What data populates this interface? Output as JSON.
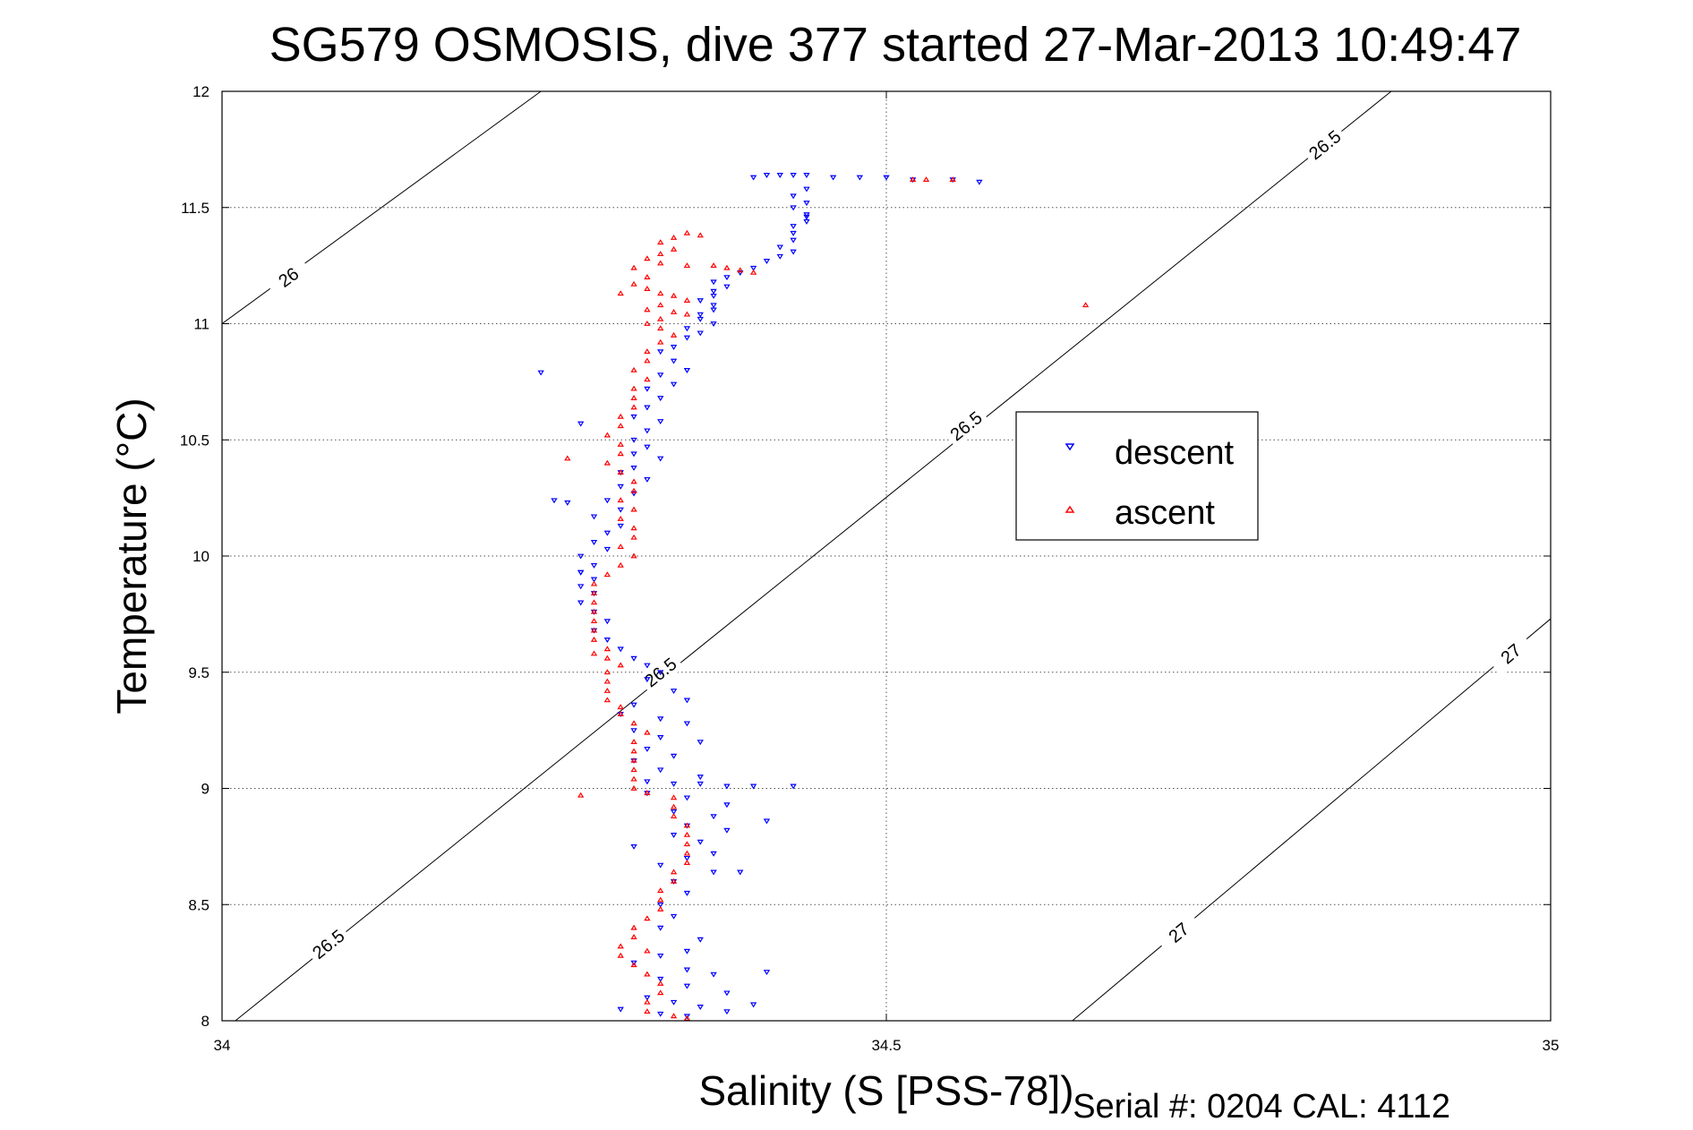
{
  "chart_data": {
    "type": "scatter",
    "title": "SG579 OSMOSIS, dive 377 started 27-Mar-2013 10:49:47",
    "xlabel": "Salinity (S [PSS-78])",
    "ylabel": "Temperature (°C)",
    "footer": "Serial #: 0204  CAL: 4112",
    "xlim": [
      34,
      35
    ],
    "ylim": [
      8,
      12
    ],
    "xticks": [
      34,
      34.5,
      35
    ],
    "xtick_labels": [
      "34",
      "34.5",
      "35"
    ],
    "yticks": [
      8,
      8.5,
      9,
      9.5,
      10,
      10.5,
      11,
      11.5,
      12
    ],
    "ytick_labels": [
      "8",
      "8.5",
      "9",
      "9.5",
      "10",
      "10.5",
      "11",
      "11.5",
      "12"
    ],
    "grid": true,
    "legend": "upper-right",
    "series": [
      {
        "name": "descent",
        "color": "#0000ff",
        "marker": "triangle-down",
        "points": [
          [
            34.4,
            11.63
          ],
          [
            34.41,
            11.64
          ],
          [
            34.42,
            11.64
          ],
          [
            34.43,
            11.64
          ],
          [
            34.44,
            11.64
          ],
          [
            34.46,
            11.63
          ],
          [
            34.48,
            11.63
          ],
          [
            34.5,
            11.63
          ],
          [
            34.52,
            11.62
          ],
          [
            34.55,
            11.62
          ],
          [
            34.57,
            11.61
          ],
          [
            34.44,
            11.58
          ],
          [
            34.43,
            11.55
          ],
          [
            34.44,
            11.52
          ],
          [
            34.43,
            11.5
          ],
          [
            34.44,
            11.47
          ],
          [
            34.44,
            11.44
          ],
          [
            34.43,
            11.42
          ],
          [
            34.43,
            11.39
          ],
          [
            34.43,
            11.36
          ],
          [
            34.42,
            11.33
          ],
          [
            34.43,
            11.31
          ],
          [
            34.42,
            11.29
          ],
          [
            34.41,
            11.27
          ],
          [
            34.4,
            11.24
          ],
          [
            34.39,
            11.22
          ],
          [
            34.38,
            11.2
          ],
          [
            34.37,
            11.18
          ],
          [
            34.38,
            11.16
          ],
          [
            34.37,
            11.14
          ],
          [
            34.37,
            11.12
          ],
          [
            34.36,
            11.1
          ],
          [
            34.37,
            11.08
          ],
          [
            34.37,
            11.06
          ],
          [
            34.36,
            11.04
          ],
          [
            34.36,
            11.02
          ],
          [
            34.37,
            11
          ],
          [
            34.35,
            10.98
          ],
          [
            34.36,
            10.96
          ],
          [
            34.35,
            10.94
          ],
          [
            34.34,
            10.9
          ],
          [
            34.33,
            10.88
          ],
          [
            34.34,
            10.84
          ],
          [
            34.35,
            10.8
          ],
          [
            34.33,
            10.78
          ],
          [
            34.34,
            10.74
          ],
          [
            34.32,
            10.72
          ],
          [
            34.33,
            10.68
          ],
          [
            34.32,
            10.64
          ],
          [
            34.31,
            10.6
          ],
          [
            34.33,
            10.58
          ],
          [
            34.32,
            10.54
          ],
          [
            34.31,
            10.5
          ],
          [
            34.32,
            10.47
          ],
          [
            34.31,
            10.44
          ],
          [
            34.33,
            10.42
          ],
          [
            34.31,
            10.38
          ],
          [
            34.3,
            10.36
          ],
          [
            34.32,
            10.33
          ],
          [
            34.3,
            10.3
          ],
          [
            34.31,
            10.27
          ],
          [
            34.29,
            10.24
          ],
          [
            34.3,
            10.2
          ],
          [
            34.28,
            10.17
          ],
          [
            34.3,
            10.13
          ],
          [
            34.29,
            10.1
          ],
          [
            34.28,
            10.06
          ],
          [
            34.29,
            10.03
          ],
          [
            34.27,
            10
          ],
          [
            34.28,
            9.96
          ],
          [
            34.27,
            9.93
          ],
          [
            34.28,
            9.9
          ],
          [
            34.27,
            9.87
          ],
          [
            34.28,
            9.84
          ],
          [
            34.27,
            9.8
          ],
          [
            34.28,
            9.76
          ],
          [
            34.29,
            9.72
          ],
          [
            34.28,
            9.68
          ],
          [
            34.29,
            9.64
          ],
          [
            34.3,
            9.6
          ],
          [
            34.31,
            9.56
          ],
          [
            34.32,
            9.53
          ],
          [
            34.33,
            9.5
          ],
          [
            34.32,
            9.47
          ],
          [
            34.34,
            9.42
          ],
          [
            34.35,
            9.38
          ],
          [
            34.31,
            9.36
          ],
          [
            34.3,
            9.32
          ],
          [
            34.33,
            9.3
          ],
          [
            34.35,
            9.28
          ],
          [
            34.31,
            9.25
          ],
          [
            34.33,
            9.22
          ],
          [
            34.36,
            9.2
          ],
          [
            34.32,
            9.17
          ],
          [
            34.34,
            9.14
          ],
          [
            34.31,
            9.12
          ],
          [
            34.33,
            9.08
          ],
          [
            34.36,
            9.05
          ],
          [
            34.32,
            9.03
          ],
          [
            34.34,
            9.02
          ],
          [
            34.36,
            9.02
          ],
          [
            34.38,
            9.01
          ],
          [
            34.4,
            9.01
          ],
          [
            34.32,
            8.98
          ],
          [
            34.35,
            8.96
          ],
          [
            34.38,
            8.93
          ],
          [
            34.34,
            8.9
          ],
          [
            34.37,
            8.88
          ],
          [
            34.41,
            8.86
          ],
          [
            34.35,
            8.84
          ],
          [
            34.38,
            8.82
          ],
          [
            34.34,
            8.8
          ],
          [
            34.36,
            8.77
          ],
          [
            34.31,
            8.75
          ],
          [
            34.37,
            8.72
          ],
          [
            34.35,
            8.7
          ],
          [
            34.33,
            8.67
          ],
          [
            34.37,
            8.64
          ],
          [
            34.39,
            8.64
          ],
          [
            34.34,
            8.6
          ],
          [
            34.35,
            8.55
          ],
          [
            34.33,
            8.5
          ],
          [
            34.34,
            8.45
          ],
          [
            34.33,
            8.4
          ],
          [
            34.36,
            8.35
          ],
          [
            34.35,
            8.3
          ],
          [
            34.33,
            8.28
          ],
          [
            34.31,
            8.25
          ],
          [
            34.35,
            8.22
          ],
          [
            34.37,
            8.2
          ],
          [
            34.33,
            8.18
          ],
          [
            34.35,
            8.15
          ],
          [
            34.38,
            8.12
          ],
          [
            34.32,
            8.1
          ],
          [
            34.34,
            8.08
          ],
          [
            34.36,
            8.06
          ],
          [
            34.3,
            8.05
          ],
          [
            34.33,
            8.03
          ],
          [
            34.35,
            8.02
          ],
          [
            34.38,
            8.04
          ],
          [
            34.4,
            8.07
          ],
          [
            34.41,
            8.21
          ],
          [
            34.24,
            10.79
          ],
          [
            34.27,
            10.57
          ],
          [
            34.25,
            10.24
          ],
          [
            34.26,
            10.23
          ],
          [
            34.27,
            9.93
          ],
          [
            34.43,
            9.01
          ],
          [
            34.44,
            11.46
          ]
        ]
      },
      {
        "name": "ascent",
        "color": "#ff0000",
        "marker": "triangle-up",
        "points": [
          [
            34.52,
            11.62
          ],
          [
            34.53,
            11.62
          ],
          [
            34.55,
            11.62
          ],
          [
            34.35,
            11.39
          ],
          [
            34.36,
            11.38
          ],
          [
            34.34,
            11.37
          ],
          [
            34.33,
            11.35
          ],
          [
            34.34,
            11.32
          ],
          [
            34.33,
            11.3
          ],
          [
            34.32,
            11.28
          ],
          [
            34.33,
            11.26
          ],
          [
            34.35,
            11.25
          ],
          [
            34.37,
            11.25
          ],
          [
            34.38,
            11.24
          ],
          [
            34.39,
            11.23
          ],
          [
            34.4,
            11.22
          ],
          [
            34.31,
            11.24
          ],
          [
            34.32,
            11.2
          ],
          [
            34.31,
            11.17
          ],
          [
            34.32,
            11.15
          ],
          [
            34.33,
            11.13
          ],
          [
            34.34,
            11.12
          ],
          [
            34.35,
            11.1
          ],
          [
            34.33,
            11.08
          ],
          [
            34.32,
            11.06
          ],
          [
            34.34,
            11.05
          ],
          [
            34.35,
            11.04
          ],
          [
            34.33,
            11.02
          ],
          [
            34.32,
            11
          ],
          [
            34.33,
            10.98
          ],
          [
            34.34,
            10.95
          ],
          [
            34.33,
            10.92
          ],
          [
            34.32,
            10.88
          ],
          [
            34.32,
            10.84
          ],
          [
            34.31,
            10.8
          ],
          [
            34.32,
            10.76
          ],
          [
            34.31,
            10.72
          ],
          [
            34.31,
            10.68
          ],
          [
            34.31,
            10.64
          ],
          [
            34.3,
            10.6
          ],
          [
            34.3,
            10.56
          ],
          [
            34.29,
            10.52
          ],
          [
            34.3,
            10.48
          ],
          [
            34.3,
            10.44
          ],
          [
            34.29,
            10.4
          ],
          [
            34.3,
            10.36
          ],
          [
            34.31,
            10.32
          ],
          [
            34.31,
            10.28
          ],
          [
            34.3,
            10.24
          ],
          [
            34.31,
            10.2
          ],
          [
            34.3,
            10.16
          ],
          [
            34.31,
            10.12
          ],
          [
            34.31,
            10.08
          ],
          [
            34.3,
            10.04
          ],
          [
            34.31,
            10
          ],
          [
            34.3,
            9.96
          ],
          [
            34.29,
            9.92
          ],
          [
            34.28,
            9.88
          ],
          [
            34.28,
            9.84
          ],
          [
            34.28,
            9.8
          ],
          [
            34.28,
            9.76
          ],
          [
            34.28,
            9.72
          ],
          [
            34.28,
            9.68
          ],
          [
            34.28,
            9.64
          ],
          [
            34.29,
            9.6
          ],
          [
            34.29,
            9.56
          ],
          [
            34.3,
            9.53
          ],
          [
            34.29,
            9.5
          ],
          [
            34.29,
            9.46
          ],
          [
            34.29,
            9.42
          ],
          [
            34.29,
            9.38
          ],
          [
            34.3,
            9.35
          ],
          [
            34.3,
            9.32
          ],
          [
            34.31,
            9.28
          ],
          [
            34.32,
            9.24
          ],
          [
            34.31,
            9.2
          ],
          [
            34.31,
            9.16
          ],
          [
            34.31,
            9.12
          ],
          [
            34.31,
            9.08
          ],
          [
            34.31,
            9.04
          ],
          [
            34.31,
            9
          ],
          [
            34.32,
            8.98
          ],
          [
            34.34,
            8.96
          ],
          [
            34.34,
            8.92
          ],
          [
            34.34,
            8.88
          ],
          [
            34.35,
            8.84
          ],
          [
            34.35,
            8.8
          ],
          [
            34.35,
            8.76
          ],
          [
            34.35,
            8.72
          ],
          [
            34.35,
            8.68
          ],
          [
            34.34,
            8.64
          ],
          [
            34.34,
            8.6
          ],
          [
            34.33,
            8.56
          ],
          [
            34.33,
            8.52
          ],
          [
            34.33,
            8.48
          ],
          [
            34.32,
            8.44
          ],
          [
            34.31,
            8.4
          ],
          [
            34.31,
            8.36
          ],
          [
            34.3,
            8.32
          ],
          [
            34.3,
            8.28
          ],
          [
            34.31,
            8.24
          ],
          [
            34.32,
            8.2
          ],
          [
            34.33,
            8.16
          ],
          [
            34.33,
            8.12
          ],
          [
            34.32,
            8.08
          ],
          [
            34.32,
            8.04
          ],
          [
            34.34,
            8.02
          ],
          [
            34.35,
            8.01
          ],
          [
            34.3,
            11.13
          ],
          [
            34.26,
            10.42
          ],
          [
            34.28,
            9.58
          ],
          [
            34.27,
            8.97
          ],
          [
            34.32,
            8.3
          ],
          [
            34.65,
            11.08
          ]
        ]
      }
    ],
    "density_contours": [
      {
        "label": "26",
        "points": [
          [
            34,
            11.0
          ],
          [
            34.24,
            12.0
          ]
        ],
        "label_positions": [
          [
            34.05,
            11.2
          ]
        ]
      },
      {
        "label": "26.5",
        "points": [
          [
            34.01,
            8.0
          ],
          [
            34.88,
            12.0
          ]
        ],
        "label_positions": [
          [
            34.08,
            8.33
          ],
          [
            34.33,
            9.5
          ],
          [
            34.56,
            10.56
          ],
          [
            34.83,
            11.77
          ]
        ]
      },
      {
        "label": "27",
        "points": [
          [
            34.64,
            8.0
          ],
          [
            35.0,
            9.73
          ]
        ],
        "label_positions": [
          [
            34.72,
            8.38
          ],
          [
            34.97,
            9.58
          ]
        ]
      }
    ]
  }
}
